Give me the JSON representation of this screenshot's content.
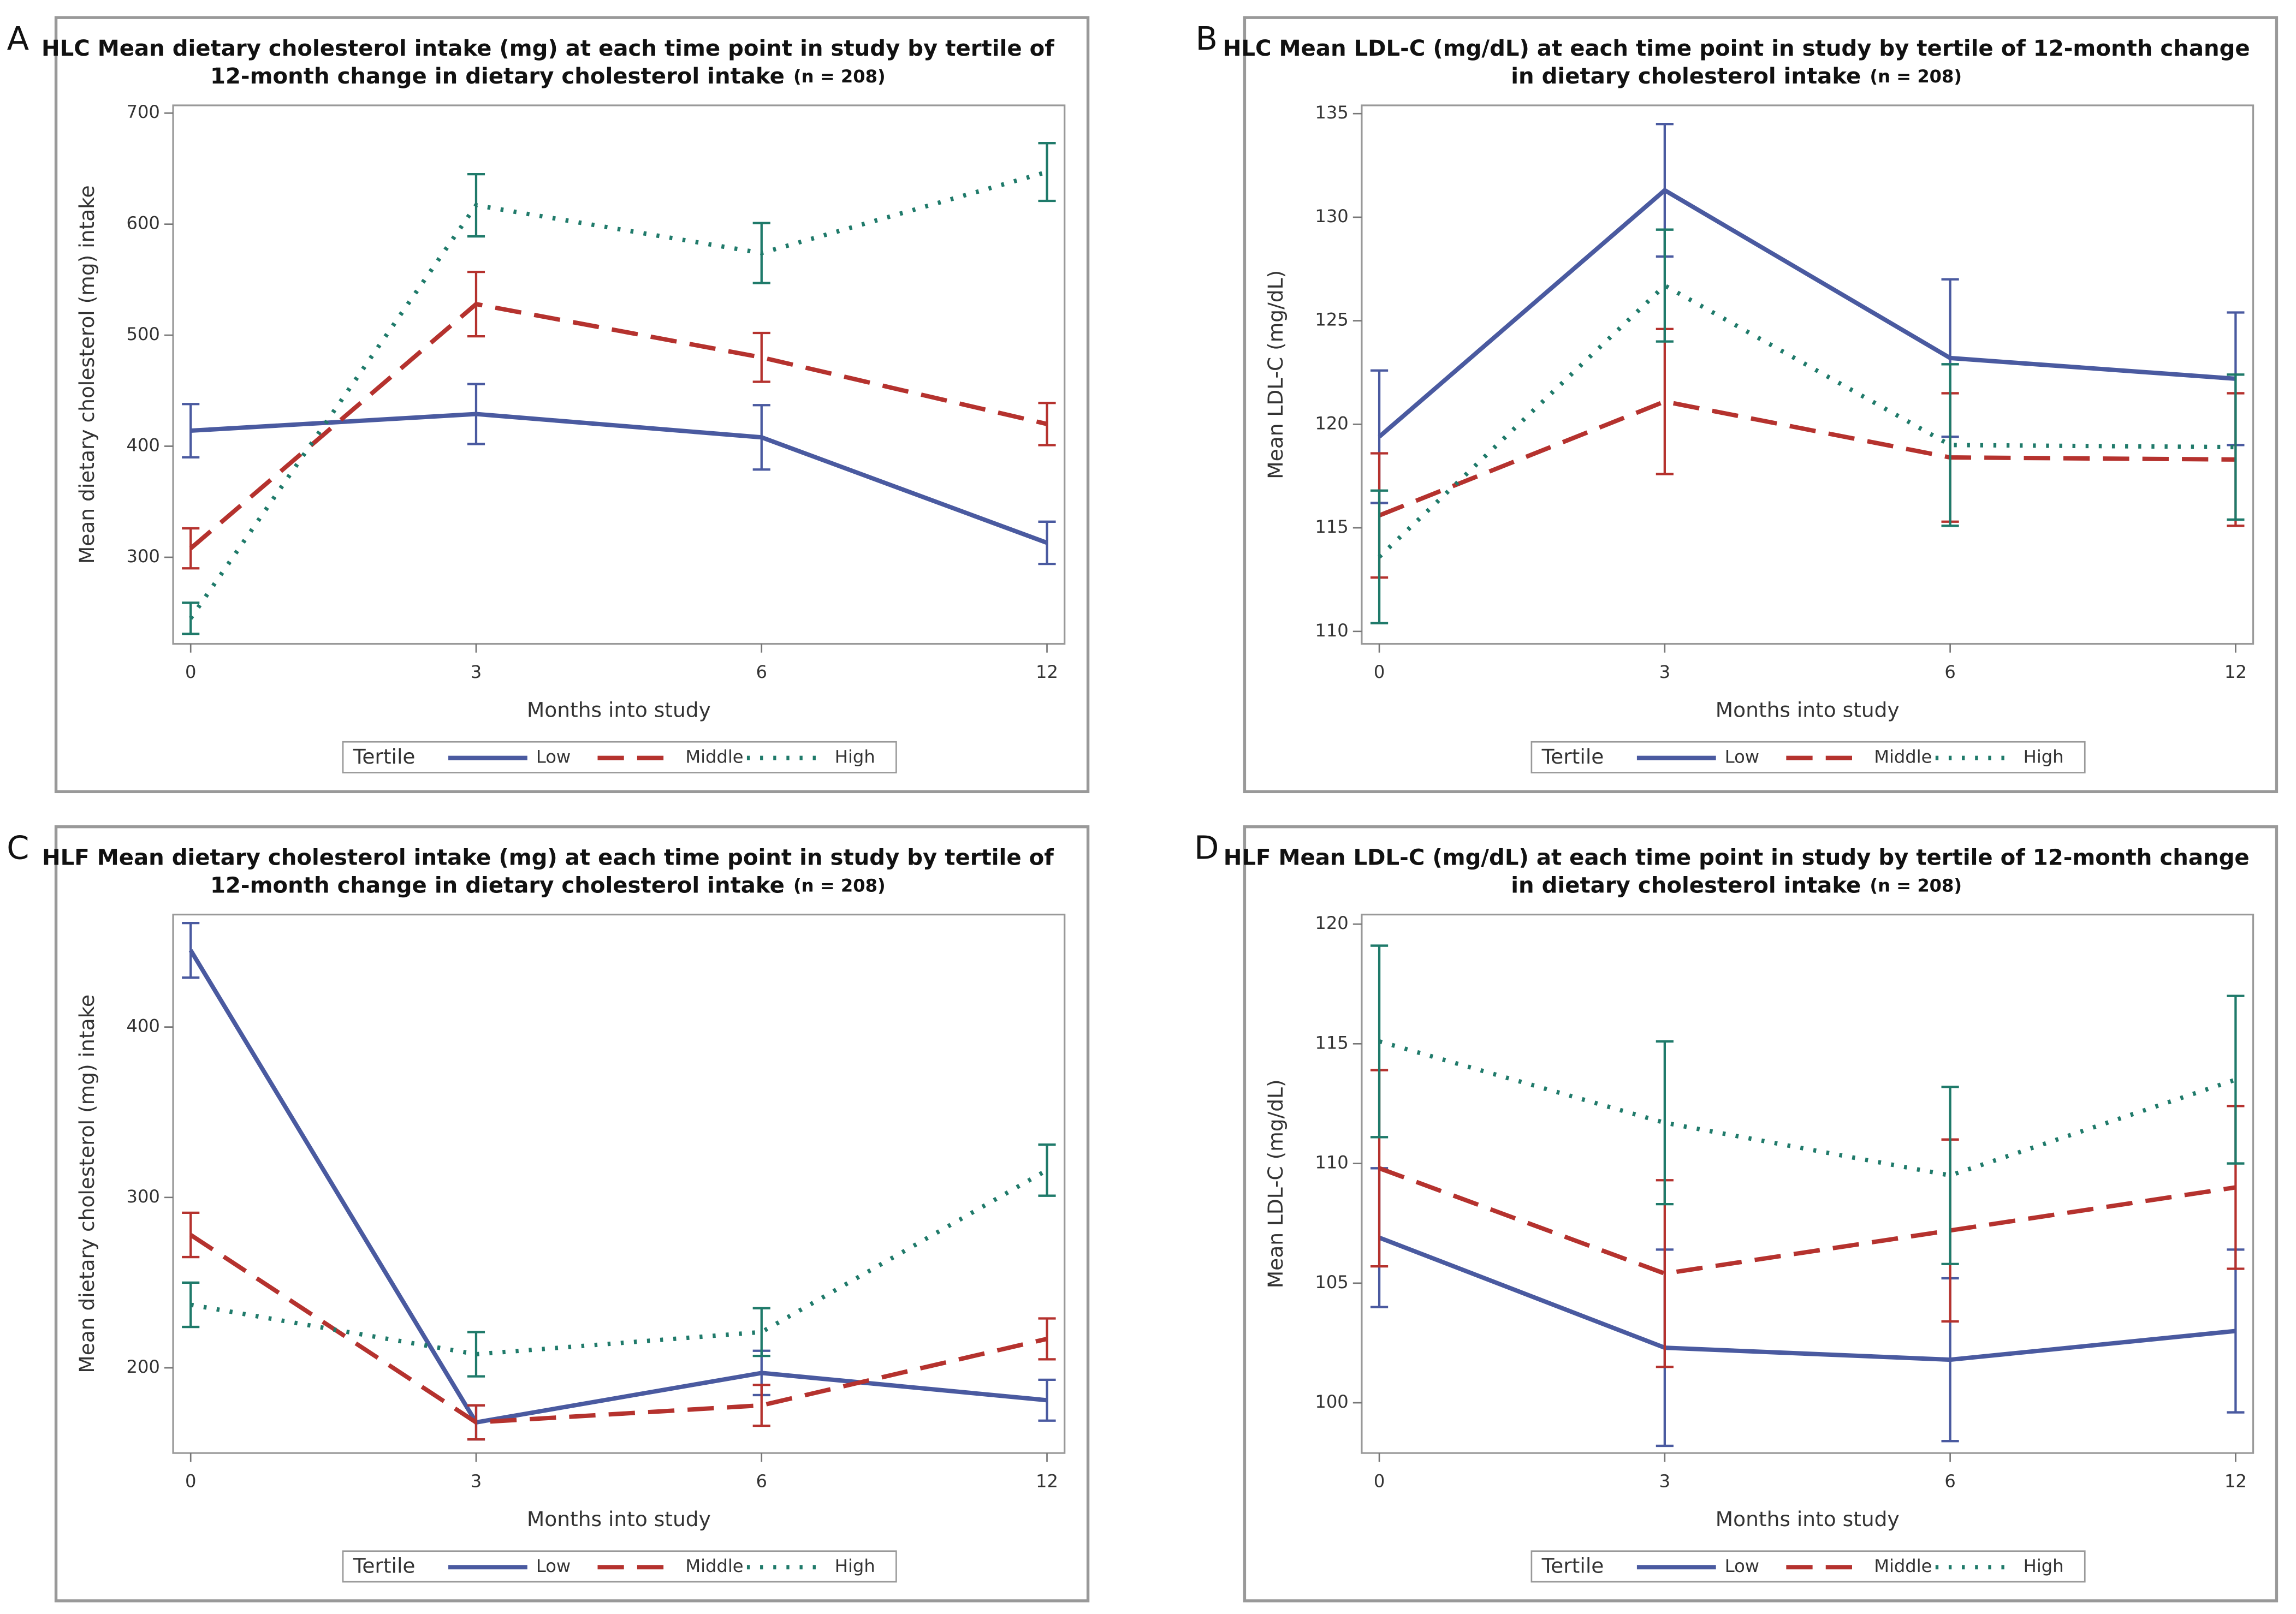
{
  "chart_data": [
    {
      "type": "line",
      "panel": "A",
      "title": [
        "HLC Mean dietary cholesterol intake (mg) at each time point in study by tertile of",
        "12-month change in dietary cholesterol intake"
      ],
      "note": "(n = 208)",
      "xlabel": "Months into study",
      "ylabel": "Mean dietary cholesterol (mg) intake",
      "categories": [
        "0",
        "3",
        "6",
        "12"
      ],
      "ylim": [
        222,
        707
      ],
      "yticks": [
        300,
        400,
        500,
        600,
        700
      ],
      "legend_title": "Tertile",
      "series": [
        {
          "name": "Low",
          "color": "#4a5aa0",
          "style": "solid",
          "values": [
            414,
            429,
            408,
            313
          ],
          "errors": [
            24,
            27,
            29,
            19
          ]
        },
        {
          "name": "Middle",
          "color": "#b5322e",
          "style": "dash",
          "values": [
            308,
            528,
            480,
            420
          ],
          "errors": [
            18,
            29,
            22,
            19
          ]
        },
        {
          "name": "High",
          "color": "#1f7a6a",
          "style": "dot",
          "values": [
            245,
            617,
            574,
            647
          ],
          "errors": [
            14,
            28,
            27,
            26
          ]
        }
      ]
    },
    {
      "type": "line",
      "panel": "B",
      "title": [
        "HLC Mean LDL-C (mg/dL) at each time point in study by tertile of 12-month change",
        "in dietary cholesterol intake"
      ],
      "note": "(n = 208)",
      "xlabel": "Months into study",
      "ylabel": "Mean LDL-C (mg/dL)",
      "categories": [
        "0",
        "3",
        "6",
        "12"
      ],
      "ylim": [
        109.4,
        135.4
      ],
      "yticks": [
        110,
        115,
        120,
        125,
        130,
        135
      ],
      "legend_title": "Tertile",
      "series": [
        {
          "name": "Low",
          "color": "#4a5aa0",
          "style": "solid",
          "values": [
            119.4,
            131.3,
            123.2,
            122.2
          ],
          "errors": [
            3.2,
            3.2,
            3.8,
            3.2
          ]
        },
        {
          "name": "Middle",
          "color": "#b5322e",
          "style": "dash",
          "values": [
            115.6,
            121.1,
            118.4,
            118.3
          ],
          "errors": [
            3.0,
            3.5,
            3.1,
            3.2
          ]
        },
        {
          "name": "High",
          "color": "#1f7a6a",
          "style": "dot",
          "values": [
            113.6,
            126.7,
            119.0,
            118.9
          ],
          "errors": [
            3.2,
            2.7,
            3.9,
            3.5
          ]
        }
      ]
    },
    {
      "type": "line",
      "panel": "C",
      "title": [
        "HLF Mean dietary cholesterol intake (mg) at each time point in study by tertile of",
        "12-month change in dietary cholesterol intake"
      ],
      "note": "(n = 208)",
      "xlabel": "Months into study",
      "ylabel": "Mean dietary cholesterol (mg) intake",
      "categories": [
        "0",
        "3",
        "6",
        "12"
      ],
      "ylim": [
        150,
        466
      ],
      "yticks": [
        200,
        300,
        400
      ],
      "legend_title": "Tertile",
      "series": [
        {
          "name": "Low",
          "color": "#4a5aa0",
          "style": "solid",
          "values": [
            445,
            168,
            197,
            181
          ],
          "errors": [
            16,
            10,
            13,
            12
          ]
        },
        {
          "name": "Middle",
          "color": "#b5322e",
          "style": "dash",
          "values": [
            278,
            168,
            178,
            217
          ],
          "errors": [
            13,
            10,
            12,
            12
          ]
        },
        {
          "name": "High",
          "color": "#1f7a6a",
          "style": "dot",
          "values": [
            237,
            208,
            221,
            316
          ],
          "errors": [
            13,
            13,
            14,
            15
          ]
        }
      ]
    },
    {
      "type": "line",
      "panel": "D",
      "title": [
        "HLF Mean LDL-C (mg/dL) at each time point in study by tertile of 12-month change",
        "in dietary cholesterol intake"
      ],
      "note": "(n = 208)",
      "xlabel": "Months into study",
      "ylabel": "Mean LDL-C (mg/dL)",
      "categories": [
        "0",
        "3",
        "6",
        "12"
      ],
      "ylim": [
        97.9,
        120.4
      ],
      "yticks": [
        100,
        105,
        110,
        115,
        120
      ],
      "legend_title": "Tertile",
      "series": [
        {
          "name": "Low",
          "color": "#4a5aa0",
          "style": "solid",
          "values": [
            106.9,
            102.3,
            101.8,
            103.0
          ],
          "errors": [
            2.9,
            4.1,
            3.4,
            3.4
          ]
        },
        {
          "name": "Middle",
          "color": "#b5322e",
          "style": "dash",
          "values": [
            109.8,
            105.4,
            107.2,
            109.0
          ],
          "errors": [
            4.1,
            3.9,
            3.8,
            3.4
          ]
        },
        {
          "name": "High",
          "color": "#1f7a6a",
          "style": "dot",
          "values": [
            115.1,
            111.7,
            109.5,
            113.5
          ],
          "errors": [
            4.0,
            3.4,
            3.7,
            3.5
          ]
        }
      ]
    }
  ]
}
